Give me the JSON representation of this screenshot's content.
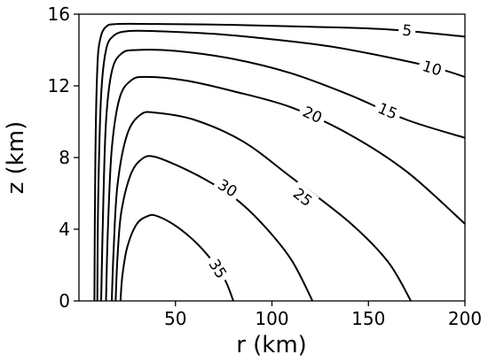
{
  "chart_data": {
    "type": "contour",
    "xlabel": "r (km)",
    "ylabel": "z (km)",
    "xlim": [
      0,
      200
    ],
    "ylim": [
      0,
      16
    ],
    "xticks": [
      50,
      100,
      150,
      200
    ],
    "yticks": [
      0,
      4,
      8,
      12,
      16
    ],
    "grid": false,
    "contours": [
      {
        "level": 5,
        "label": "5",
        "label_at": [
          170,
          15.1
        ],
        "points": [
          [
            8,
            0
          ],
          [
            8.5,
            8
          ],
          [
            9.5,
            13
          ],
          [
            11,
            14.6
          ],
          [
            14,
            15.3
          ],
          [
            20,
            15.45
          ],
          [
            40,
            15.45
          ],
          [
            80,
            15.4
          ],
          [
            120,
            15.3
          ],
          [
            160,
            15.15
          ],
          [
            200,
            14.75
          ]
        ]
      },
      {
        "level": 10,
        "label": "10",
        "label_at": [
          183,
          13.0
        ],
        "points": [
          [
            9.5,
            0
          ],
          [
            10,
            6
          ],
          [
            11.5,
            11.5
          ],
          [
            14,
            14
          ],
          [
            18,
            14.8
          ],
          [
            25,
            15.05
          ],
          [
            40,
            15.05
          ],
          [
            70,
            14.9
          ],
          [
            100,
            14.6
          ],
          [
            130,
            14.2
          ],
          [
            160,
            13.6
          ],
          [
            185,
            13.0
          ],
          [
            200,
            12.5
          ]
        ]
      },
      {
        "level": 15,
        "label": "15",
        "label_at": [
          160,
          10.6
        ],
        "points": [
          [
            11.5,
            0
          ],
          [
            12.5,
            5
          ],
          [
            14,
            10
          ],
          [
            17,
            12.8
          ],
          [
            22,
            13.8
          ],
          [
            30,
            14.0
          ],
          [
            50,
            13.95
          ],
          [
            80,
            13.5
          ],
          [
            110,
            12.7
          ],
          [
            140,
            11.5
          ],
          [
            170,
            10.1
          ],
          [
            200,
            9.1
          ]
        ]
      },
      {
        "level": 20,
        "label": "20",
        "label_at": [
          121,
          10.4
        ],
        "points": [
          [
            14,
            0
          ],
          [
            15,
            4
          ],
          [
            17,
            8.5
          ],
          [
            21,
            11.3
          ],
          [
            27,
            12.3
          ],
          [
            35,
            12.5
          ],
          [
            55,
            12.3
          ],
          [
            80,
            11.7
          ],
          [
            110,
            10.8
          ],
          [
            140,
            9.3
          ],
          [
            170,
            7.2
          ],
          [
            200,
            4.3
          ]
        ]
      },
      {
        "level": 25,
        "label": "25",
        "label_at": [
          116,
          5.8
        ],
        "points": [
          [
            17,
            0
          ],
          [
            18,
            3
          ],
          [
            20,
            6.5
          ],
          [
            25,
            9.3
          ],
          [
            32,
            10.4
          ],
          [
            40,
            10.5
          ],
          [
            60,
            10.1
          ],
          [
            85,
            8.9
          ],
          [
            110,
            6.9
          ],
          [
            140,
            4.4
          ],
          [
            160,
            2.2
          ],
          [
            172,
            0
          ]
        ]
      },
      {
        "level": 30,
        "label": "30",
        "label_at": [
          77,
          6.3
        ],
        "points": [
          [
            19,
            0
          ],
          [
            20,
            2.5
          ],
          [
            22,
            5.0
          ],
          [
            27,
            7.1
          ],
          [
            33,
            7.95
          ],
          [
            39,
            8.05
          ],
          [
            50,
            7.6
          ],
          [
            65,
            6.8
          ],
          [
            80,
            5.8
          ],
          [
            95,
            4.3
          ],
          [
            110,
            2.3
          ],
          [
            121,
            0
          ]
        ]
      },
      {
        "level": 35,
        "label": "35",
        "label_at": [
          72,
          1.8
        ],
        "points": [
          [
            21.5,
            0
          ],
          [
            22.5,
            1.4
          ],
          [
            25,
            3.0
          ],
          [
            30,
            4.3
          ],
          [
            36,
            4.75
          ],
          [
            40,
            4.75
          ],
          [
            47,
            4.4
          ],
          [
            55,
            3.8
          ],
          [
            63,
            3.0
          ],
          [
            70,
            2.1
          ],
          [
            76,
            1.1
          ],
          [
            80,
            0
          ]
        ]
      }
    ]
  }
}
